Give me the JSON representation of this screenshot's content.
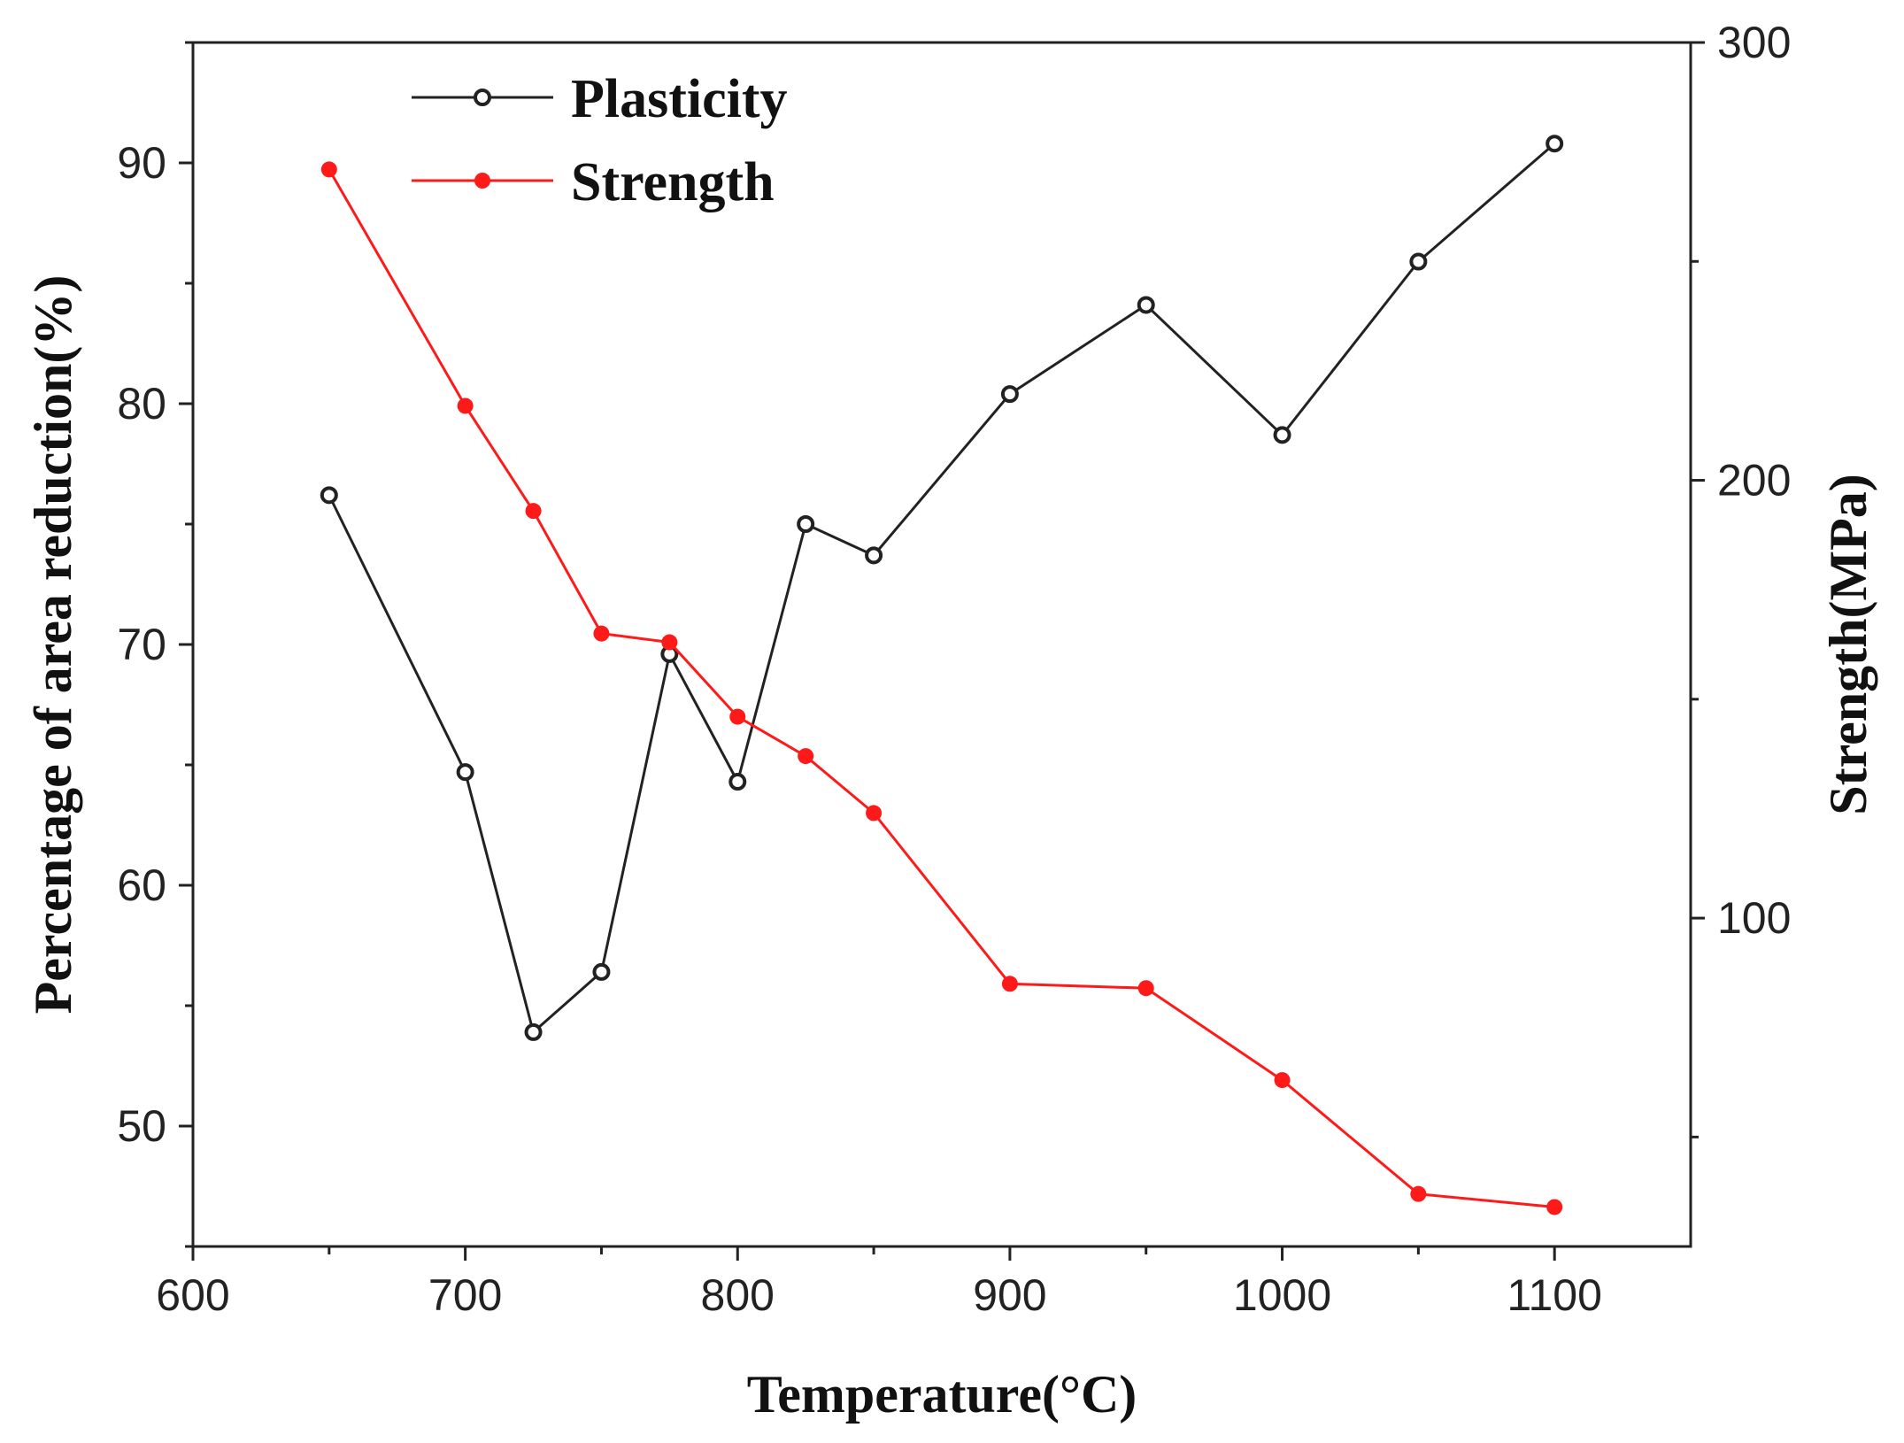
{
  "chart_data": {
    "type": "line",
    "title": "",
    "xlabel": "Temperature(°C)",
    "ylabel": "Percentage of area reduction(%)",
    "y2label": "Strength(MPa)",
    "xlim": [
      600,
      1150
    ],
    "ylim": [
      45,
      95
    ],
    "y2lim": [
      25,
      300
    ],
    "xticks": [
      600,
      700,
      800,
      900,
      1000,
      1100
    ],
    "yticks": [
      50,
      60,
      70,
      80,
      90
    ],
    "y2ticks": [
      100,
      200,
      300
    ],
    "grid": false,
    "legend_position": "top-left",
    "series": [
      {
        "name": "Plasticity",
        "axis": "left",
        "color": "#222222",
        "marker": "open-circle",
        "x": [
          650,
          700,
          725,
          750,
          775,
          800,
          825,
          850,
          900,
          950,
          1000,
          1050,
          1100
        ],
        "y": [
          76.2,
          64.7,
          53.9,
          56.4,
          69.6,
          64.3,
          75.0,
          73.7,
          80.4,
          84.1,
          78.7,
          85.9,
          90.8
        ]
      },
      {
        "name": "Strength",
        "axis": "right",
        "color": "#ff1a1a",
        "marker": "filled-circle",
        "x": [
          650,
          700,
          725,
          750,
          775,
          800,
          825,
          850,
          900,
          950,
          1000,
          1050,
          1100
        ],
        "y": [
          271,
          217,
          193,
          165,
          163,
          146,
          137,
          124,
          85,
          84,
          63,
          37,
          34
        ]
      }
    ]
  }
}
